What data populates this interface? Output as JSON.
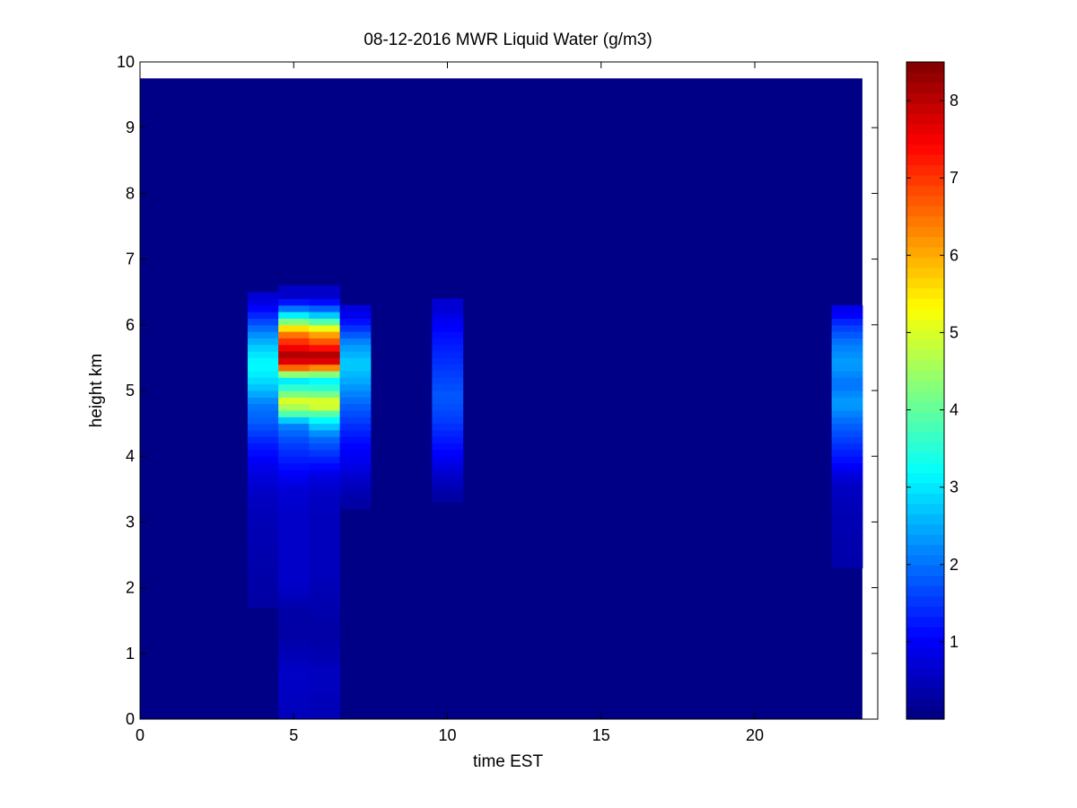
{
  "chart_data": {
    "type": "heatmap",
    "title": "08-12-2016 MWR Liquid Water (g/m3)",
    "xlabel": "time EST",
    "ylabel": "height km",
    "xlim": [
      0,
      24
    ],
    "ylim": [
      0,
      10
    ],
    "x_ticks": [
      "0",
      "5",
      "10",
      "15",
      "20"
    ],
    "x_tick_values": [
      0,
      5,
      10,
      15,
      20
    ],
    "y_ticks": [
      "0",
      "1",
      "2",
      "3",
      "4",
      "5",
      "6",
      "7",
      "8",
      "9",
      "10"
    ],
    "y_tick_values": [
      0,
      1,
      2,
      3,
      4,
      5,
      6,
      7,
      8,
      9,
      10
    ],
    "data_extent": {
      "x": [
        0,
        23.5
      ],
      "y": [
        0,
        9.75
      ]
    },
    "colorbar": {
      "colormap": "jet",
      "range": [
        0,
        8.5
      ],
      "ticks": [
        "1",
        "2",
        "3",
        "4",
        "5",
        "6",
        "7",
        "8"
      ],
      "tick_values": [
        1,
        2,
        3,
        4,
        5,
        6,
        7,
        8
      ]
    },
    "background_value": 0.05,
    "columns": [
      {
        "x_start": 3.5,
        "x_end": 4.5,
        "profile": [
          [
            1.8,
            0.3
          ],
          [
            2.2,
            0.35
          ],
          [
            2.6,
            0.4
          ],
          [
            3.0,
            0.45
          ],
          [
            3.4,
            0.55
          ],
          [
            3.8,
            0.85
          ],
          [
            4.2,
            1.3
          ],
          [
            4.5,
            1.8
          ],
          [
            4.8,
            2.1
          ],
          [
            5.0,
            2.6
          ],
          [
            5.2,
            3.0
          ],
          [
            5.4,
            3.2
          ],
          [
            5.6,
            2.9
          ],
          [
            5.8,
            2.4
          ],
          [
            6.0,
            1.8
          ],
          [
            6.2,
            1.2
          ],
          [
            6.4,
            0.7
          ]
        ]
      },
      {
        "x_start": 4.5,
        "x_end": 5.5,
        "profile": [
          [
            0.1,
            0.5
          ],
          [
            0.4,
            0.55
          ],
          [
            0.7,
            0.6
          ],
          [
            1.0,
            0.45
          ],
          [
            1.3,
            0.3
          ],
          [
            1.7,
            0.35
          ],
          [
            2.0,
            0.6
          ],
          [
            2.5,
            0.6
          ],
          [
            3.0,
            0.6
          ],
          [
            3.5,
            0.7
          ],
          [
            3.8,
            1.1
          ],
          [
            4.2,
            1.6
          ],
          [
            4.5,
            2.2
          ],
          [
            4.7,
            4.4
          ],
          [
            4.85,
            5.0
          ],
          [
            5.0,
            3.8
          ],
          [
            5.2,
            2.8
          ],
          [
            5.3,
            6.0
          ],
          [
            5.5,
            8.3
          ],
          [
            5.7,
            7.3
          ],
          [
            5.9,
            6.2
          ],
          [
            6.1,
            3.6
          ],
          [
            6.3,
            1.5
          ],
          [
            6.45,
            0.6
          ]
        ]
      },
      {
        "x_start": 5.5,
        "x_end": 6.5,
        "profile": [
          [
            0.1,
            0.45
          ],
          [
            0.4,
            0.5
          ],
          [
            0.7,
            0.55
          ],
          [
            1.0,
            0.4
          ],
          [
            1.3,
            0.3
          ],
          [
            1.8,
            0.4
          ],
          [
            2.2,
            0.5
          ],
          [
            2.6,
            0.5
          ],
          [
            3.0,
            0.5
          ],
          [
            3.4,
            0.55
          ],
          [
            3.7,
            0.8
          ],
          [
            4.0,
            1.4
          ],
          [
            4.3,
            2.0
          ],
          [
            4.6,
            3.4
          ],
          [
            4.8,
            5.4
          ],
          [
            5.0,
            3.7
          ],
          [
            5.2,
            3.0
          ],
          [
            5.3,
            5.6
          ],
          [
            5.5,
            8.4
          ],
          [
            5.7,
            7.0
          ],
          [
            5.9,
            5.8
          ],
          [
            6.1,
            3.2
          ],
          [
            6.3,
            1.4
          ],
          [
            6.45,
            0.6
          ]
        ]
      },
      {
        "x_start": 6.5,
        "x_end": 7.5,
        "profile": [
          [
            3.3,
            0.3
          ],
          [
            3.6,
            0.55
          ],
          [
            3.9,
            0.9
          ],
          [
            4.2,
            1.1
          ],
          [
            4.5,
            1.5
          ],
          [
            4.8,
            1.9
          ],
          [
            5.1,
            2.4
          ],
          [
            5.4,
            2.8
          ],
          [
            5.7,
            2.3
          ],
          [
            6.0,
            1.3
          ],
          [
            6.2,
            0.8
          ]
        ]
      },
      {
        "x_start": 9.5,
        "x_end": 10.5,
        "profile": [
          [
            3.4,
            0.3
          ],
          [
            3.7,
            0.6
          ],
          [
            4.0,
            1.0
          ],
          [
            4.3,
            1.3
          ],
          [
            4.6,
            1.6
          ],
          [
            4.9,
            1.8
          ],
          [
            5.2,
            1.6
          ],
          [
            5.5,
            1.4
          ],
          [
            5.8,
            1.2
          ],
          [
            6.1,
            0.9
          ],
          [
            6.25,
            0.7
          ]
        ]
      },
      {
        "x_start": 22.5,
        "x_end": 23.5,
        "profile": [
          [
            2.4,
            0.35
          ],
          [
            2.8,
            0.4
          ],
          [
            3.2,
            0.45
          ],
          [
            3.6,
            0.6
          ],
          [
            3.9,
            1.1
          ],
          [
            4.2,
            1.5
          ],
          [
            4.5,
            1.9
          ],
          [
            4.8,
            2.4
          ],
          [
            5.1,
            2.0
          ],
          [
            5.4,
            2.4
          ],
          [
            5.7,
            2.1
          ],
          [
            6.0,
            1.5
          ],
          [
            6.2,
            0.9
          ]
        ]
      }
    ]
  }
}
